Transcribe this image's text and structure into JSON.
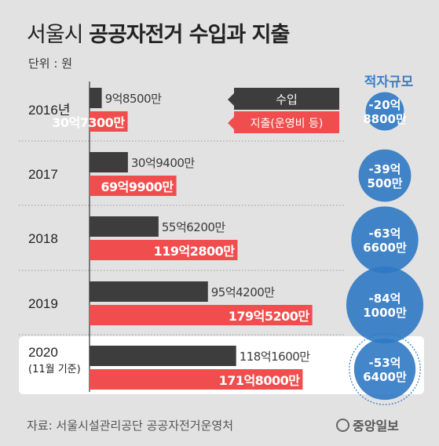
{
  "title": {
    "light": "서울시 ",
    "bold": "공공자전거 수입과 지출"
  },
  "unit": "단위 : 원",
  "deficit_header": "적자규모",
  "legend": {
    "income": "수입",
    "expense": "지출(운영비 등)"
  },
  "source": "자료: 서울시설관리공단 공공자전거운영처",
  "logo": "중앙일보",
  "colors": {
    "income": "#3d3d3d",
    "expense": "#f04e4e",
    "deficit": "#2f79c4",
    "highlight": "#ffffff"
  },
  "chart_data": {
    "type": "bar",
    "orientation": "horizontal",
    "categories": [
      "2016년",
      "2017",
      "2018",
      "2019",
      "2020"
    ],
    "category_notes": [
      "",
      "",
      "",
      "",
      "(11월 기준)"
    ],
    "highlighted_category": "2020",
    "series": [
      {
        "name": "수입",
        "values": [
          9.85,
          30.94,
          55.62,
          95.42,
          118.16
        ],
        "labels": [
          "9억8500만",
          "30억9400만",
          "55억6200만",
          "95억4200만",
          "118억1600만"
        ]
      },
      {
        "name": "지출(운영비 등)",
        "values": [
          30.73,
          69.99,
          119.28,
          179.52,
          171.8
        ],
        "labels": [
          "30억7300만",
          "69억9900만",
          "119억2800만",
          "179억5200만",
          "171억8000만"
        ]
      }
    ],
    "deficit": {
      "name": "적자규모",
      "values": [
        -20.88,
        -39.05,
        -63.66,
        -84.1,
        -53.64
      ],
      "labels": [
        [
          "-20억",
          "8800만"
        ],
        [
          "-39억",
          "500만"
        ],
        [
          "-63억",
          "6600만"
        ],
        [
          "-84억",
          "1000만"
        ],
        [
          "-53억",
          "6400만"
        ]
      ]
    },
    "unit": "억 원",
    "xlim": [
      0,
      200
    ]
  }
}
